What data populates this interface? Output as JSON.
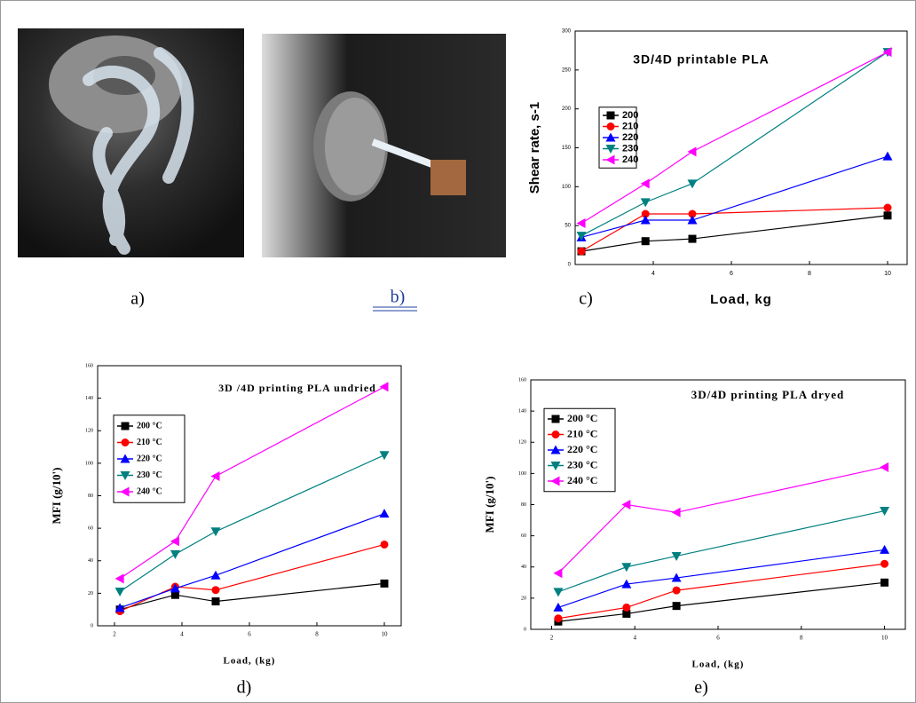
{
  "captions": [
    "a)",
    "b)",
    "c)",
    "d)",
    "e)"
  ],
  "chart_data": [
    {
      "type": "line",
      "title": "3D/4D printable PLA",
      "x_label": "Load, kg",
      "y_label": "Shear rate, s-1",
      "x": [
        2.16,
        3.8,
        5,
        10
      ],
      "xlim": [
        2,
        10.5
      ],
      "xticks": [
        4,
        6,
        8,
        10
      ],
      "ylim": [
        0,
        300
      ],
      "yticks": [
        0,
        50,
        100,
        150,
        200,
        250,
        300
      ],
      "series": [
        {
          "name": "200",
          "color": "#000000",
          "marker": "square",
          "values": [
            17,
            30,
            33,
            63
          ]
        },
        {
          "name": "210",
          "color": "#ff0000",
          "marker": "circle",
          "values": [
            17,
            65,
            65,
            73
          ]
        },
        {
          "name": "220",
          "color": "#0000ff",
          "marker": "triangle-up",
          "values": [
            35,
            57,
            57,
            139
          ]
        },
        {
          "name": "230",
          "color": "#008080",
          "marker": "triangle-down",
          "values": [
            37,
            80,
            104,
            273
          ]
        },
        {
          "name": "240",
          "color": "#ff00ff",
          "marker": "triangle-left",
          "values": [
            53,
            104,
            145,
            273
          ]
        }
      ]
    },
    {
      "type": "line",
      "title": "3D /4D printing PLA undried",
      "x_label": "Load, (kg)",
      "y_label": "MFI (g/10')",
      "x": [
        2.16,
        3.8,
        5,
        10
      ],
      "xlim": [
        1.5,
        10.5
      ],
      "xticks": [
        2,
        4,
        6,
        8,
        10
      ],
      "ylim": [
        0,
        160
      ],
      "yticks": [
        0,
        20,
        40,
        60,
        80,
        100,
        120,
        140,
        160
      ],
      "series": [
        {
          "name": "200 °C",
          "color": "#000000",
          "marker": "square",
          "values": [
            10,
            19,
            15,
            26
          ]
        },
        {
          "name": "210 °C",
          "color": "#ff0000",
          "marker": "circle",
          "values": [
            9,
            24,
            22,
            50
          ]
        },
        {
          "name": "220 °C",
          "color": "#0000ff",
          "marker": "triangle-up",
          "values": [
            11,
            23,
            31,
            69
          ]
        },
        {
          "name": "230 °C",
          "color": "#008080",
          "marker": "triangle-down",
          "values": [
            21,
            44,
            58,
            105
          ]
        },
        {
          "name": "240 °C",
          "color": "#ff00ff",
          "marker": "triangle-left",
          "values": [
            29,
            52,
            92,
            147
          ]
        }
      ]
    },
    {
      "type": "line",
      "title": "3D/4D printing PLA dryed",
      "x_label": "Load, (kg)",
      "y_label": "MFI (g/10')",
      "x": [
        2.16,
        3.8,
        5,
        10
      ],
      "xlim": [
        1.5,
        10.5
      ],
      "xticks": [
        2,
        4,
        6,
        8,
        10
      ],
      "ylim": [
        0,
        160
      ],
      "yticks": [
        0,
        20,
        40,
        60,
        80,
        100,
        120,
        140,
        160
      ],
      "series": [
        {
          "name": "200 °C",
          "color": "#000000",
          "marker": "square",
          "values": [
            5,
            10,
            15,
            30
          ]
        },
        {
          "name": "210 °C",
          "color": "#ff0000",
          "marker": "circle",
          "values": [
            7,
            14,
            25,
            42
          ]
        },
        {
          "name": "220 °C",
          "color": "#0000ff",
          "marker": "triangle-up",
          "values": [
            14,
            29,
            33,
            51
          ]
        },
        {
          "name": "230 °C",
          "color": "#008080",
          "marker": "triangle-down",
          "values": [
            24,
            40,
            47,
            76
          ]
        },
        {
          "name": "240 °C",
          "color": "#ff00ff",
          "marker": "triangle-left",
          "values": [
            36,
            80,
            75,
            104
          ]
        }
      ]
    }
  ]
}
